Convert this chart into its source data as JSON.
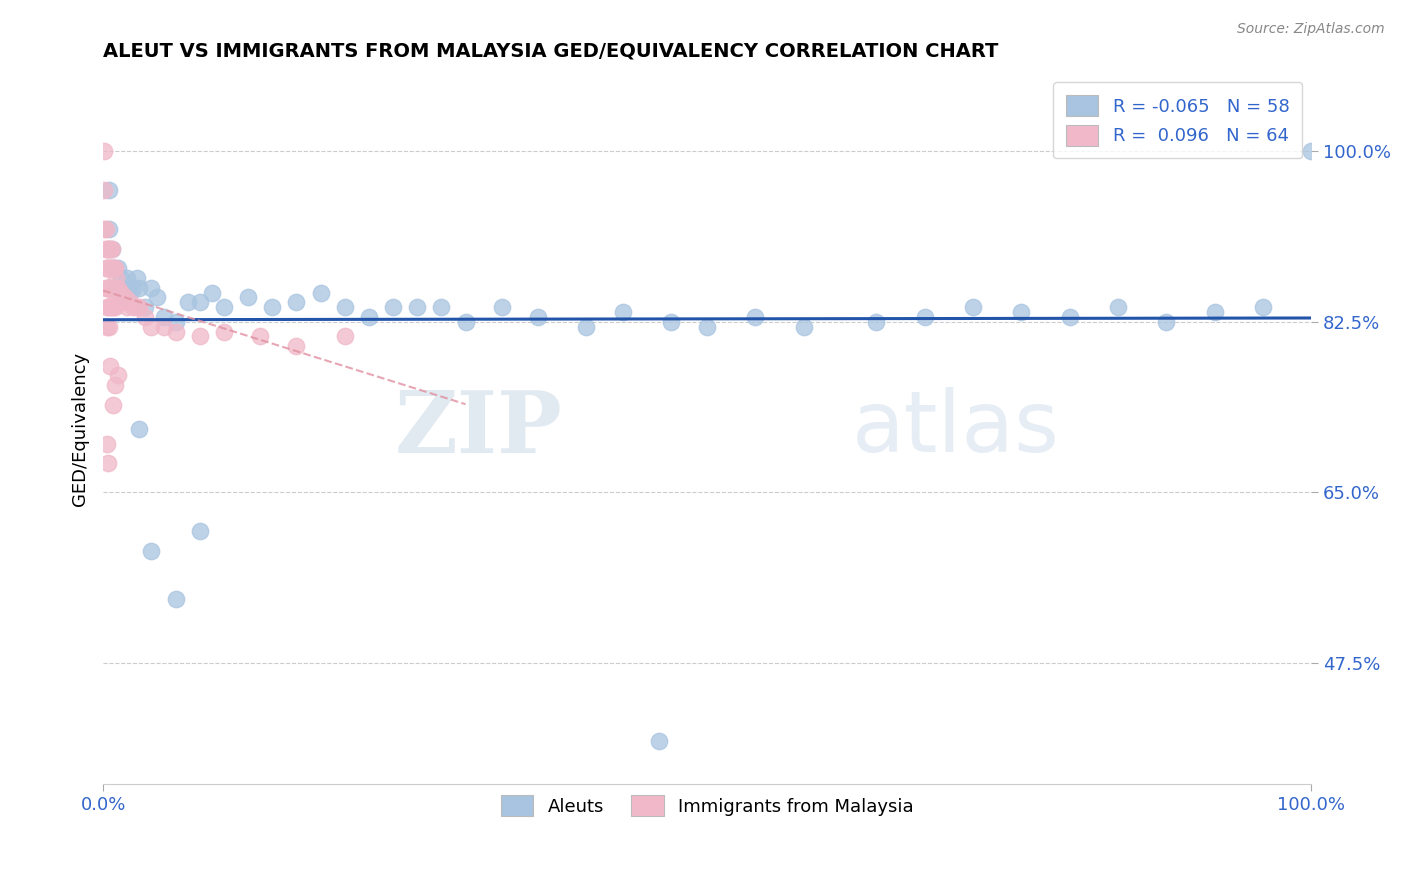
{
  "title": "ALEUT VS IMMIGRANTS FROM MALAYSIA GED/EQUIVALENCY CORRELATION CHART",
  "source": "Source: ZipAtlas.com",
  "ylabel": "GED/Equivalency",
  "ytick_labels": [
    "47.5%",
    "65.0%",
    "82.5%",
    "100.0%"
  ],
  "ytick_values": [
    0.475,
    0.65,
    0.825,
    1.0
  ],
  "xmin": 0.0,
  "xmax": 1.0,
  "ymin": 0.35,
  "ymax": 1.08,
  "legend_bottom": [
    "Aleuts",
    "Immigrants from Malaysia"
  ],
  "aleuts_color": "#a8c4e0",
  "malaysia_color": "#f0b8c8",
  "trendline_aleuts_color": "#2255aa",
  "trendline_malaysia_color": "#e090a0",
  "watermark_zip": "ZIP",
  "watermark_atlas": "atlas",
  "aleuts_x": [
    0.005,
    0.005,
    0.007,
    0.008,
    0.01,
    0.01,
    0.012,
    0.013,
    0.015,
    0.016,
    0.018,
    0.02,
    0.022,
    0.025,
    0.028,
    0.03,
    0.035,
    0.04,
    0.045,
    0.05,
    0.06,
    0.07,
    0.08,
    0.09,
    0.1,
    0.12,
    0.14,
    0.16,
    0.18,
    0.2,
    0.22,
    0.24,
    0.26,
    0.28,
    0.3,
    0.33,
    0.36,
    0.4,
    0.43,
    0.47,
    0.5,
    0.54,
    0.58,
    0.64,
    0.68,
    0.72,
    0.76,
    0.8,
    0.84,
    0.88,
    0.92,
    0.96,
    1.0,
    0.03,
    0.04,
    0.06,
    0.08,
    0.46
  ],
  "aleuts_y": [
    0.96,
    0.92,
    0.9,
    0.88,
    0.88,
    0.86,
    0.88,
    0.86,
    0.87,
    0.86,
    0.85,
    0.87,
    0.855,
    0.86,
    0.87,
    0.86,
    0.84,
    0.86,
    0.85,
    0.83,
    0.825,
    0.845,
    0.845,
    0.855,
    0.84,
    0.85,
    0.84,
    0.845,
    0.855,
    0.84,
    0.83,
    0.84,
    0.84,
    0.84,
    0.825,
    0.84,
    0.83,
    0.82,
    0.835,
    0.825,
    0.82,
    0.83,
    0.82,
    0.825,
    0.83,
    0.84,
    0.835,
    0.83,
    0.84,
    0.825,
    0.835,
    0.84,
    1.0,
    0.715,
    0.59,
    0.54,
    0.61,
    0.395
  ],
  "malaysia_x": [
    0.001,
    0.001,
    0.001,
    0.002,
    0.002,
    0.002,
    0.002,
    0.003,
    0.003,
    0.003,
    0.003,
    0.003,
    0.004,
    0.004,
    0.004,
    0.004,
    0.005,
    0.005,
    0.005,
    0.005,
    0.006,
    0.006,
    0.006,
    0.006,
    0.007,
    0.007,
    0.007,
    0.007,
    0.008,
    0.008,
    0.008,
    0.009,
    0.009,
    0.01,
    0.01,
    0.01,
    0.011,
    0.011,
    0.012,
    0.013,
    0.014,
    0.015,
    0.016,
    0.018,
    0.02,
    0.022,
    0.025,
    0.028,
    0.03,
    0.035,
    0.04,
    0.05,
    0.06,
    0.08,
    0.1,
    0.13,
    0.16,
    0.2,
    0.01,
    0.012,
    0.006,
    0.008,
    0.003,
    0.004
  ],
  "malaysia_y": [
    1.0,
    0.96,
    0.92,
    0.92,
    0.9,
    0.88,
    0.86,
    0.9,
    0.88,
    0.86,
    0.84,
    0.82,
    0.9,
    0.88,
    0.86,
    0.84,
    0.9,
    0.88,
    0.86,
    0.82,
    0.9,
    0.88,
    0.86,
    0.84,
    0.9,
    0.88,
    0.86,
    0.84,
    0.88,
    0.86,
    0.84,
    0.88,
    0.86,
    0.88,
    0.86,
    0.84,
    0.87,
    0.85,
    0.86,
    0.855,
    0.85,
    0.855,
    0.845,
    0.85,
    0.84,
    0.845,
    0.84,
    0.84,
    0.84,
    0.83,
    0.82,
    0.82,
    0.815,
    0.81,
    0.815,
    0.81,
    0.8,
    0.81,
    0.76,
    0.77,
    0.78,
    0.74,
    0.7,
    0.68
  ]
}
